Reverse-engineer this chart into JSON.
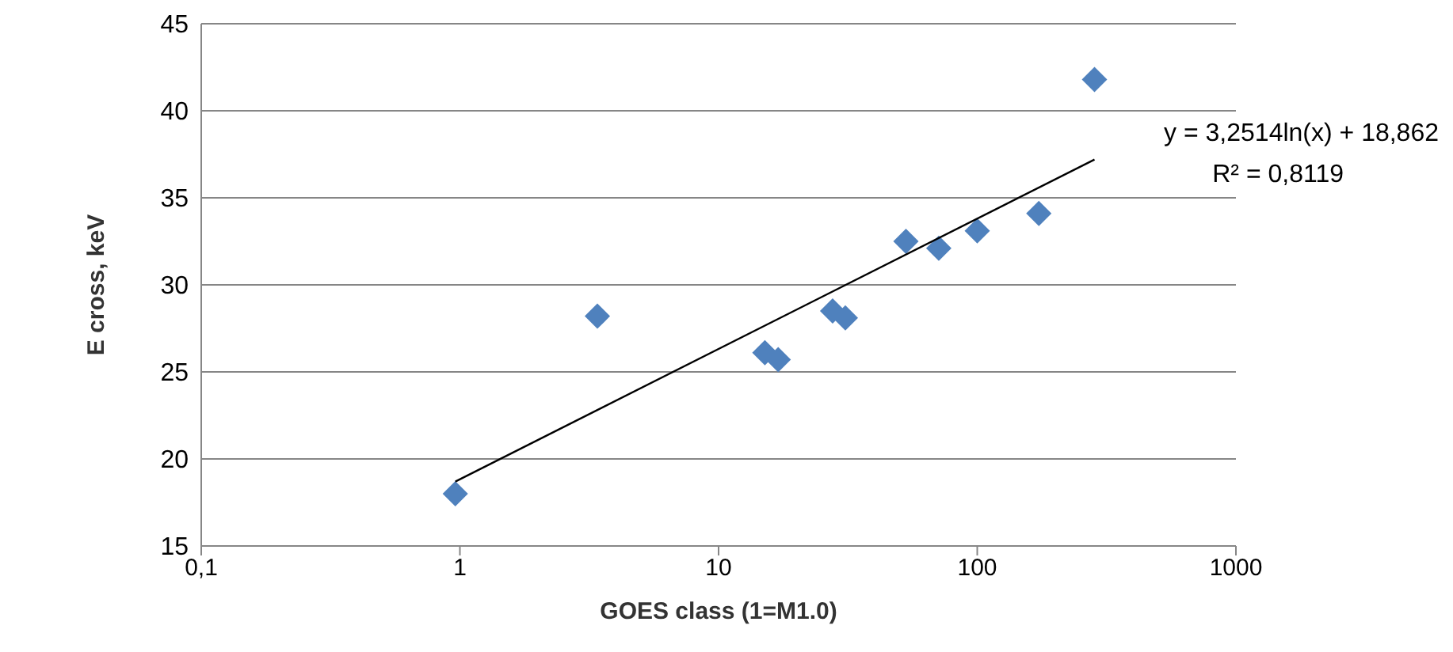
{
  "chart_data": {
    "type": "scatter",
    "xlabel": "GOES class (1=M1.0)",
    "ylabel": "E cross, keV",
    "log": "x",
    "xlim": [
      0.1,
      1000
    ],
    "xticks": [
      {
        "value": 0.1,
        "label": "0,1"
      },
      1,
      10,
      100,
      1000
    ],
    "ylim": [
      15,
      45
    ],
    "yticks": [
      15,
      20,
      25,
      30,
      35,
      40,
      45
    ],
    "grid": "y",
    "marker": "diamond",
    "series": [
      {
        "color": "#4f81bd",
        "x": [
          0.96,
          3.4,
          15.1,
          17,
          27.6,
          30.9,
          53,
          71,
          100,
          173,
          284
        ],
        "values": [
          18,
          28.2,
          26.1,
          25.7,
          28.5,
          28.1,
          32.5,
          32.1,
          33.1,
          34.1,
          41.8
        ]
      },
      {
        "type": "line",
        "color": "#000000",
        "marker": "none",
        "x": [
          0.96,
          284
        ],
        "values": [
          18.7,
          37.2
        ]
      }
    ],
    "annotations": [
      "y = 3,2514ln(x)  + 18,862",
      "R² = 0,8119"
    ]
  }
}
